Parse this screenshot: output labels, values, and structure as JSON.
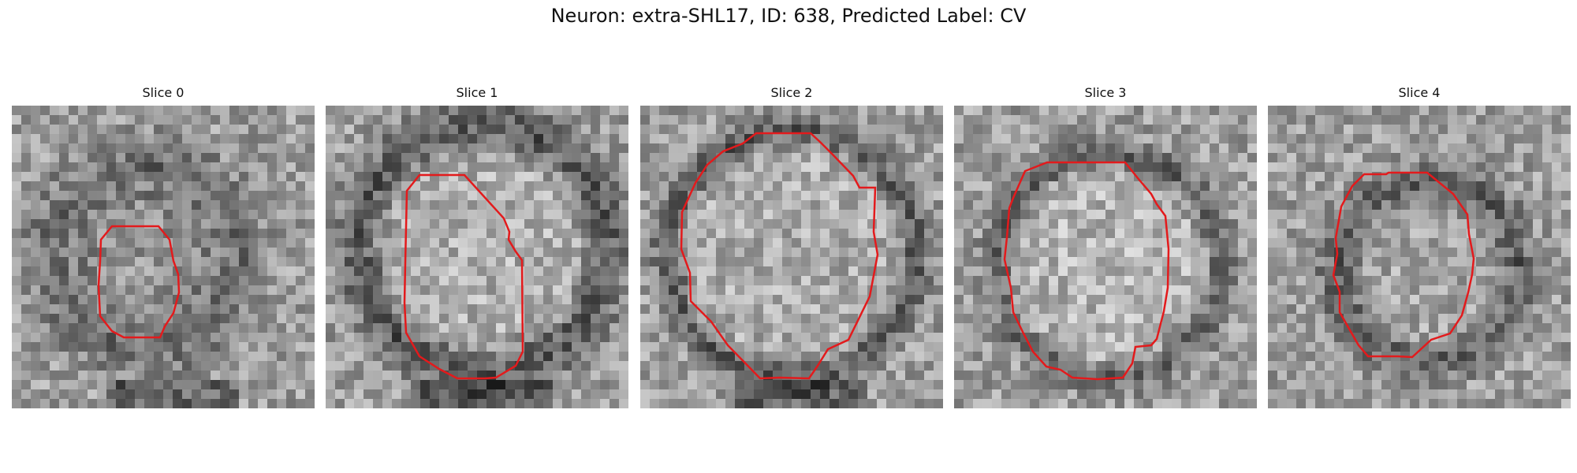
{
  "figure": {
    "title": "Neuron: extra-SHL17, ID: 638, Predicted Label: CV",
    "contour_color": "#e31a1c",
    "slices": [
      {
        "title": "Slice 0"
      },
      {
        "title": "Slice 1"
      },
      {
        "title": "Slice 2"
      },
      {
        "title": "Slice 3"
      },
      {
        "title": "Slice 4"
      }
    ]
  }
}
